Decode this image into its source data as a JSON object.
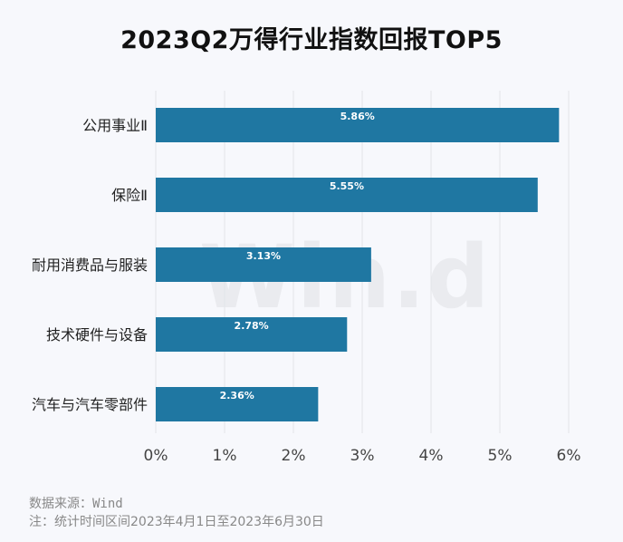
{
  "chart_data": {
    "type": "bar",
    "orientation": "horizontal",
    "title": "2023Q2万得行业指数回报TOP5",
    "categories": [
      "公用事业Ⅱ",
      "保险Ⅱ",
      "耐用消费品与服装",
      "技术硬件与设备",
      "汽车与汽车零部件"
    ],
    "values": [
      5.86,
      5.55,
      3.13,
      2.78,
      2.36
    ],
    "data_labels": [
      "5.86%",
      "5.55%",
      "3.13%",
      "2.78%",
      "2.36%"
    ],
    "xlim": [
      0,
      6
    ],
    "xticks": [
      "0%",
      "1%",
      "2%",
      "3%",
      "4%",
      "5%",
      "6%"
    ],
    "grid": true,
    "bar_color": "#1f77a2"
  },
  "watermark": "Wind",
  "footer": {
    "source": "数据来源：Wind",
    "note": "注：统计时间区间2023年4月1日至2023年6月30日"
  }
}
